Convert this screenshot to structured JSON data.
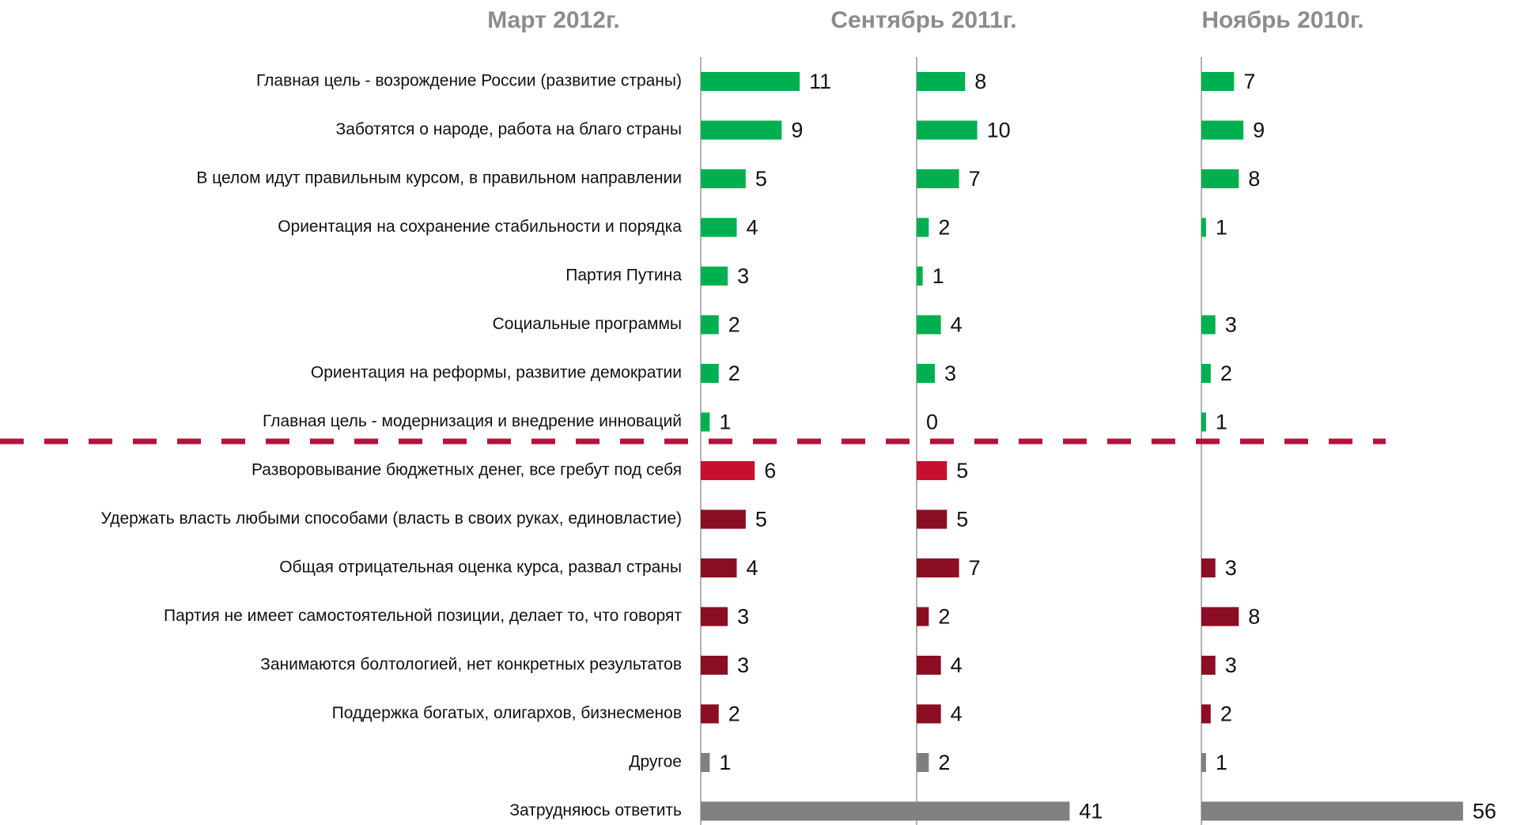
{
  "chart_data": {
    "type": "bar",
    "categories": [
      "Главная цель - возрождение России (развитие страны)",
      "Заботятся о народе, работа на благо страны",
      "В целом идут правильным курсом, в правильном направлении",
      "Ориентация на сохранение стабильности и порядка",
      "Партия Путина",
      "Социальные программы",
      "Ориентация на реформы, развитие демократии",
      "Главная цель - модернизация и внедрение инноваций",
      "Разворовывание бюджетных денег, все гребут под себя",
      "Удержать власть любыми способами (власть в своих руках, единовластие)",
      "Общая отрицательная оценка курса, развал страны",
      "Партия не имеет самостоятельной позиции, делает то, что говорят",
      "Занимаются болтологией, нет конкретных результатов",
      "Поддержка богатых, олигархов, бизнесменов",
      "Другое",
      "Затрудняюсь ответить"
    ],
    "category_colors": [
      "#00b050",
      "#00b050",
      "#00b050",
      "#00b050",
      "#00b050",
      "#00b050",
      "#00b050",
      "#00b050",
      "#c8102e",
      "#8b0e24",
      "#8b0e24",
      "#8b0e24",
      "#8b0e24",
      "#8b0e24",
      "#808080",
      "#808080"
    ],
    "series": [
      {
        "name": "Март 2012г.",
        "xlim": [
          0,
          24
        ],
        "values": [
          11,
          9,
          5,
          4,
          3,
          2,
          2,
          1,
          6,
          5,
          4,
          3,
          3,
          2,
          1,
          41
        ]
      },
      {
        "name": "Сентябрь 2011г.",
        "xlim": [
          0,
          47
        ],
        "values": [
          8,
          10,
          7,
          2,
          1,
          4,
          3,
          0,
          5,
          5,
          7,
          2,
          4,
          4,
          2,
          null
        ]
      },
      {
        "name": "Ноябрь 2010г.",
        "xlim": [
          0,
          65
        ],
        "values": [
          7,
          9,
          8,
          1,
          null,
          3,
          2,
          1,
          null,
          null,
          3,
          8,
          3,
          2,
          1,
          56
        ]
      }
    ]
  }
}
